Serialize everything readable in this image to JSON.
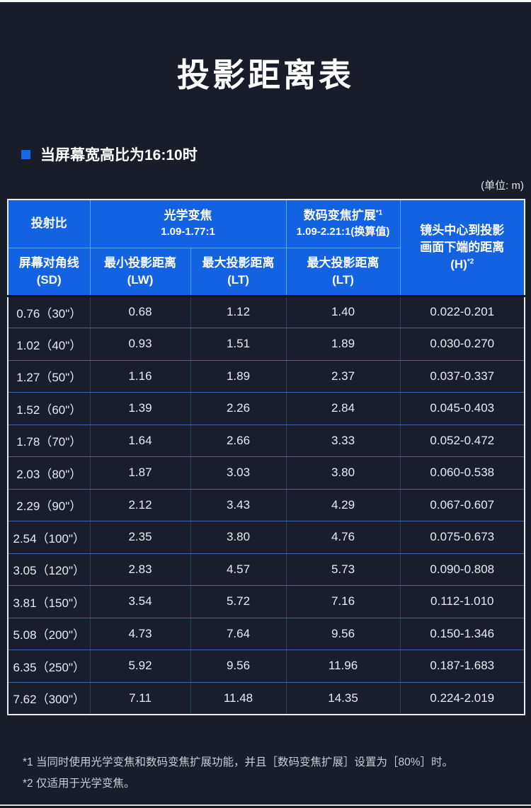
{
  "page": {
    "title": "投影距离表",
    "section_heading": "当屏幕宽高比为16:10时",
    "unit_label": "(单位: m)"
  },
  "colors": {
    "header_blue": "#1262e2",
    "accent_bullet_blue": "#1668e8",
    "body_background": "#191d2a",
    "cell_background": "#1a1e2c",
    "grid_line_horizontal": "#3f63ac",
    "grid_line_vertical": "#2e3e63",
    "header_grid_line": "#5ba1f5",
    "table_outer_border": "#e9ebef"
  },
  "table": {
    "header": {
      "throw_ratio": "投射比",
      "optical_zoom_title": "光学变焦",
      "optical_zoom_range": "1.09-1.77:1",
      "digital_zoom_title": "数码变焦扩展",
      "digital_zoom_sup": "*1",
      "digital_zoom_range": "1.09-2.21:1(换算值)",
      "lens_center_line1": "镜头中心到投影",
      "lens_center_line2": "画面下端的距离",
      "lens_center_line3": "(H)",
      "lens_center_sup": "*2",
      "sd_line1": "屏幕对角线",
      "sd_line2": "(SD)",
      "lw_line1": "最小投影距离",
      "lw_line2": "(LW)",
      "lt_optical_line1": "最大投影距离",
      "lt_optical_line2": "(LT)",
      "lt_digital_line1": "最大投影距离",
      "lt_digital_line2": "(LT)"
    },
    "rows": [
      {
        "sd": "0.76（30\"）",
        "lw": "0.68",
        "lt": "1.12",
        "lt2": "1.40",
        "h": "0.022-0.201"
      },
      {
        "sd": "1.02（40\"）",
        "lw": "0.93",
        "lt": "1.51",
        "lt2": "1.89",
        "h": "0.030-0.270"
      },
      {
        "sd": "1.27（50\"）",
        "lw": "1.16",
        "lt": "1.89",
        "lt2": "2.37",
        "h": "0.037-0.337"
      },
      {
        "sd": "1.52（60\"）",
        "lw": "1.39",
        "lt": "2.26",
        "lt2": "2.84",
        "h": "0.045-0.403"
      },
      {
        "sd": "1.78（70\"）",
        "lw": "1.64",
        "lt": "2.66",
        "lt2": "3.33",
        "h": "0.052-0.472"
      },
      {
        "sd": "2.03（80\"）",
        "lw": "1.87",
        "lt": "3.03",
        "lt2": "3.80",
        "h": "0.060-0.538"
      },
      {
        "sd": "2.29（90\"）",
        "lw": "2.12",
        "lt": "3.43",
        "lt2": "4.29",
        "h": "0.067-0.607"
      },
      {
        "sd": "2.54（100\"）",
        "lw": "2.35",
        "lt": "3.80",
        "lt2": "4.76",
        "h": "0.075-0.673"
      },
      {
        "sd": "3.05（120\"）",
        "lw": "2.83",
        "lt": "4.57",
        "lt2": "5.73",
        "h": "0.090-0.808"
      },
      {
        "sd": "3.81（150\"）",
        "lw": "3.54",
        "lt": "5.72",
        "lt2": "7.16",
        "h": "0.112-1.010"
      },
      {
        "sd": "5.08（200\"）",
        "lw": "4.73",
        "lt": "7.64",
        "lt2": "9.56",
        "h": "0.150-1.346"
      },
      {
        "sd": "6.35（250\"）",
        "lw": "5.92",
        "lt": "9.56",
        "lt2": "11.96",
        "h": "0.187-1.683"
      },
      {
        "sd": "7.62（300\"）",
        "lw": "7.11",
        "lt": "11.48",
        "lt2": "14.35",
        "h": "0.224-2.019"
      }
    ]
  },
  "footnotes": [
    "*1 当同时使用光学变焦和数码变焦扩展功能，并且［数码变焦扩展］设置为［80%］时。",
    "*2 仅适用于光学变焦。"
  ]
}
